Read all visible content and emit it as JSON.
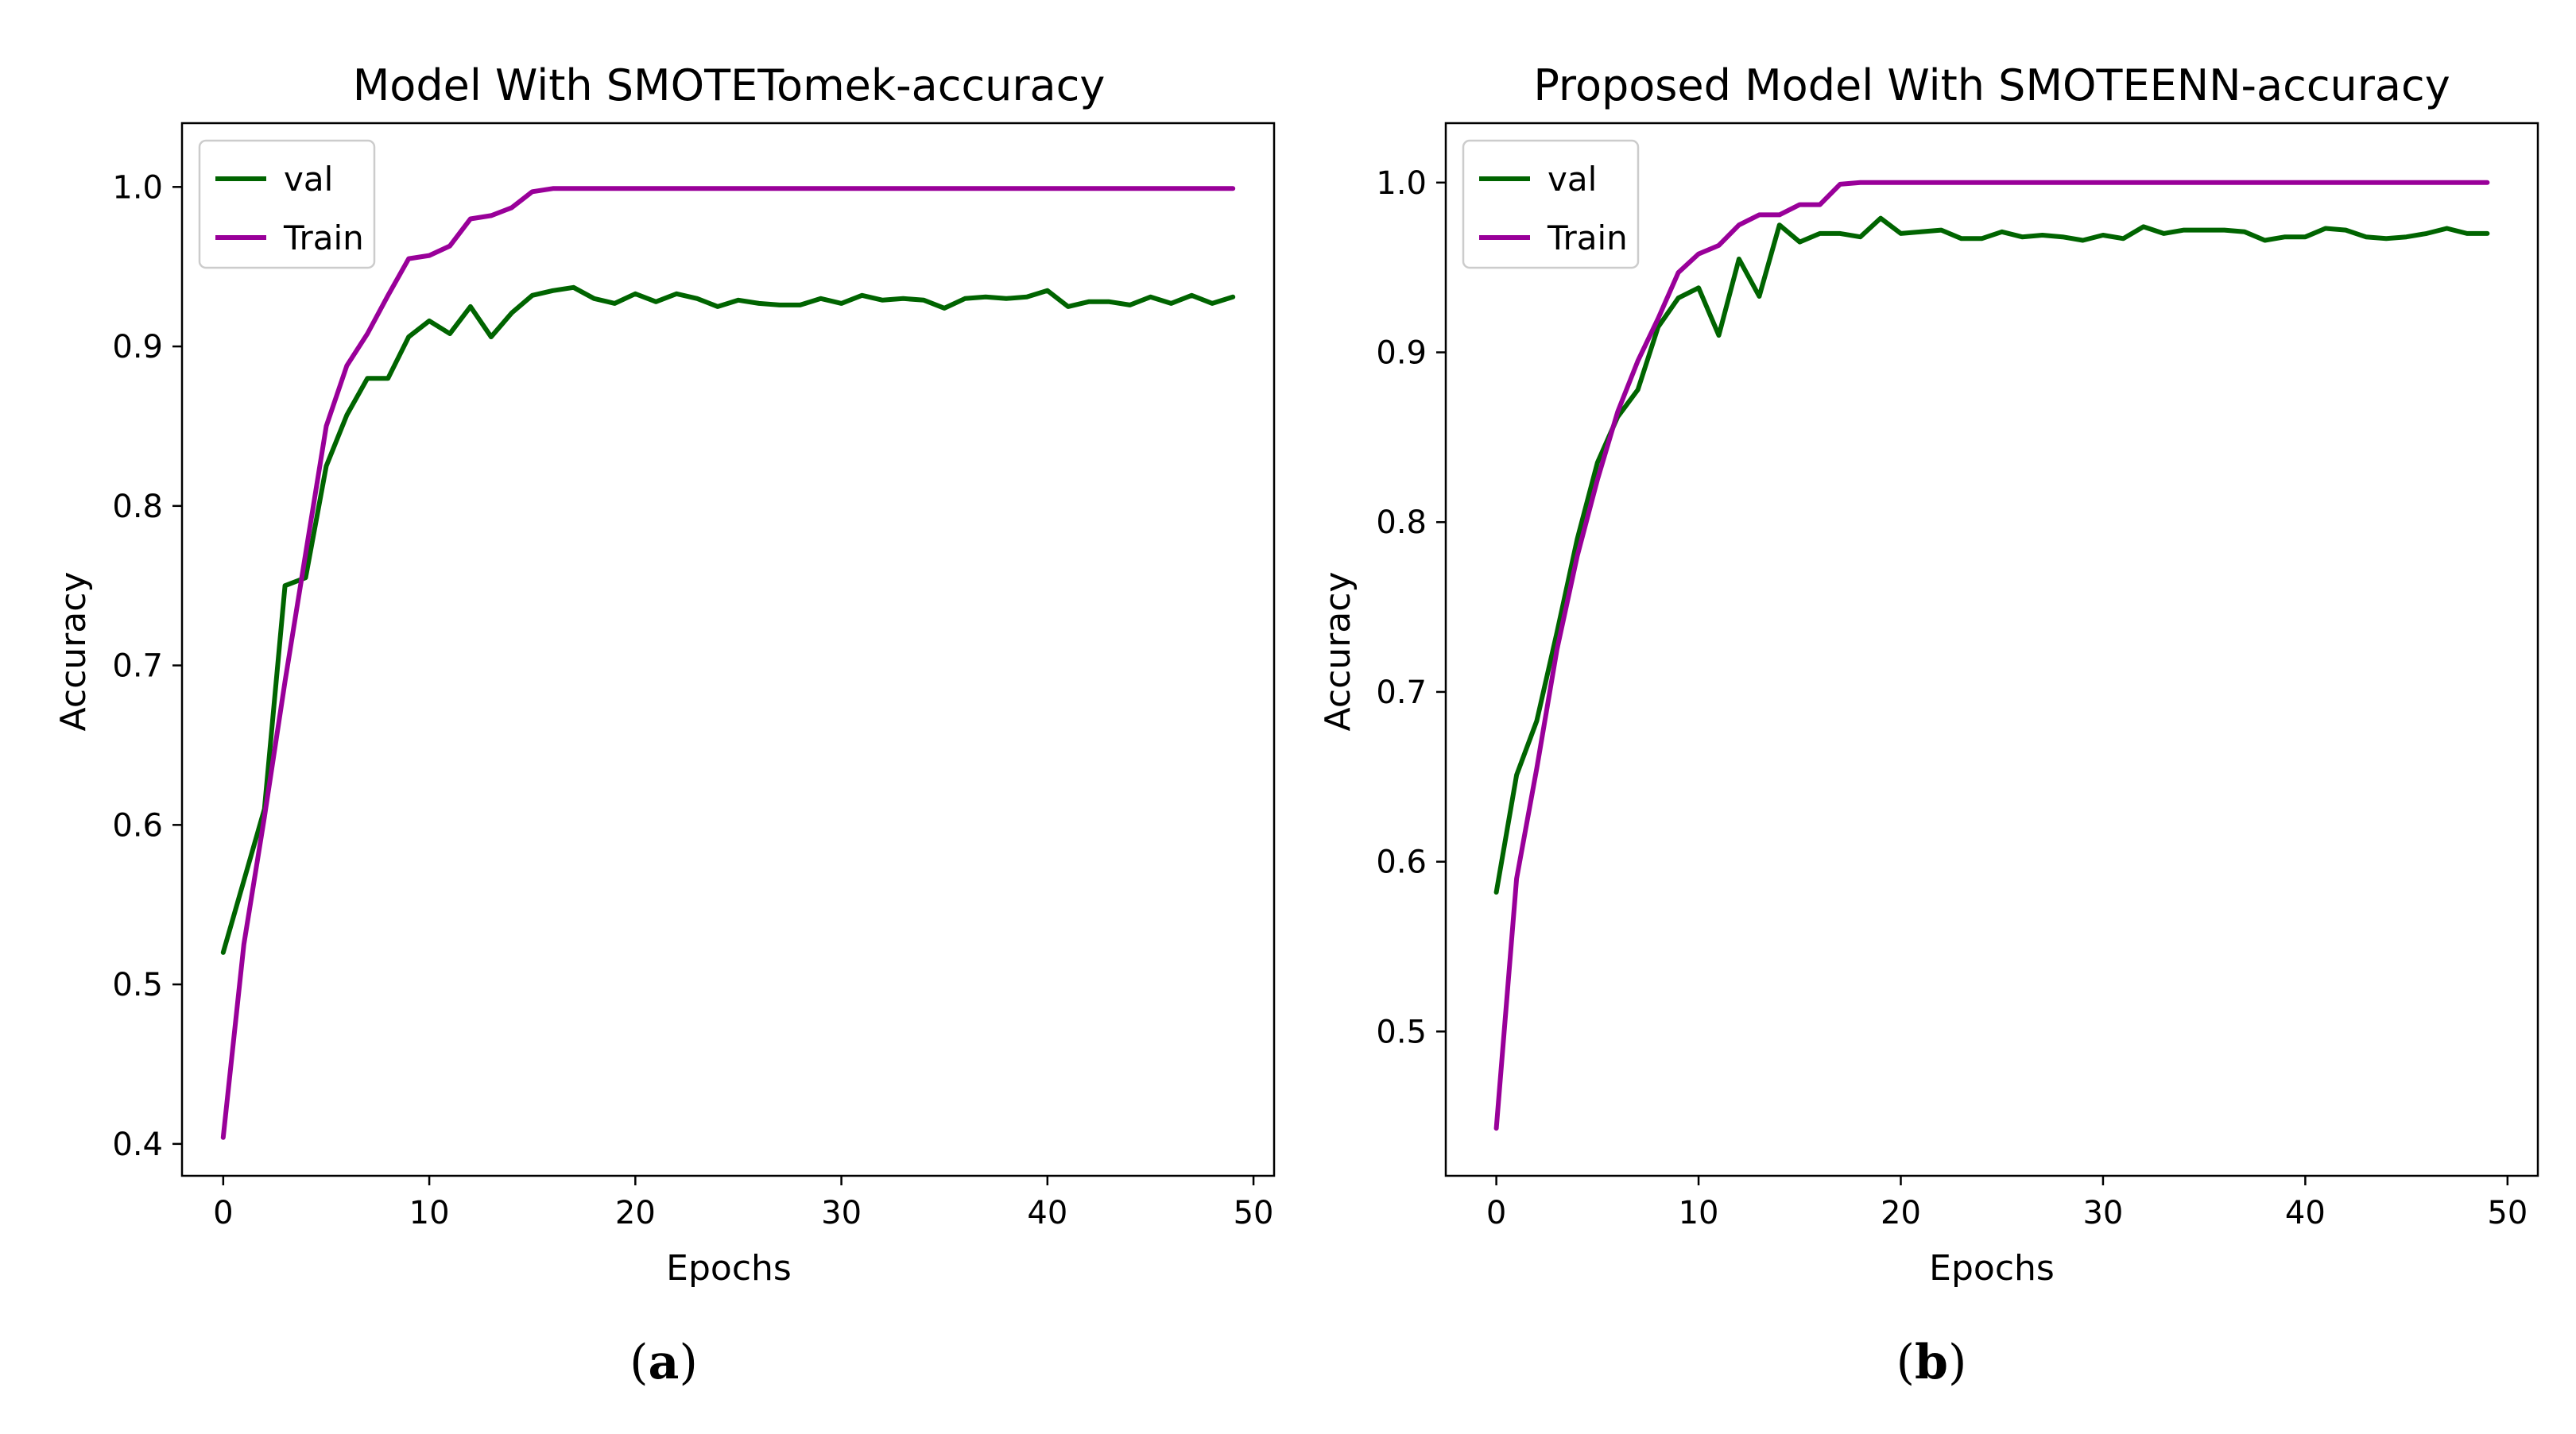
{
  "chart_data": [
    {
      "type": "line",
      "title": "Model With SMOTETomek-accuracy",
      "xlabel": "Epochs",
      "ylabel": "Accuracy",
      "xlim": [
        -2,
        51
      ],
      "ylim": [
        0.38,
        1.04
      ],
      "xticks": [
        0,
        10,
        20,
        30,
        40,
        50
      ],
      "xtick_labels": [
        "0",
        "10",
        "20",
        "30",
        "40",
        "50"
      ],
      "yticks": [
        0.4,
        0.5,
        0.6,
        0.7,
        0.8,
        0.9,
        1.0
      ],
      "ytick_labels": [
        "0.4",
        "0.5",
        "0.6",
        "0.7",
        "0.8",
        "0.9",
        "1.0"
      ],
      "legend_position": "top-left",
      "caption_open": "(",
      "caption_letter": "a",
      "caption_close": ")",
      "series": [
        {
          "name": "val",
          "color": "#006400",
          "x": [
            0,
            1,
            2,
            3,
            4,
            5,
            6,
            7,
            8,
            9,
            10,
            11,
            12,
            13,
            14,
            15,
            16,
            17,
            18,
            19,
            20,
            21,
            22,
            23,
            24,
            25,
            26,
            27,
            28,
            29,
            30,
            31,
            32,
            33,
            34,
            35,
            36,
            37,
            38,
            39,
            40,
            41,
            42,
            43,
            44,
            45,
            46,
            47,
            48,
            49
          ],
          "values": [
            0.52,
            0.565,
            0.61,
            0.75,
            0.755,
            0.825,
            0.857,
            0.88,
            0.88,
            0.906,
            0.916,
            0.908,
            0.925,
            0.906,
            0.921,
            0.932,
            0.935,
            0.937,
            0.93,
            0.927,
            0.933,
            0.928,
            0.933,
            0.93,
            0.925,
            0.929,
            0.927,
            0.926,
            0.926,
            0.93,
            0.927,
            0.932,
            0.929,
            0.93,
            0.929,
            0.924,
            0.93,
            0.931,
            0.93,
            0.931,
            0.935,
            0.925,
            0.928,
            0.928,
            0.926,
            0.931,
            0.927,
            0.932,
            0.927,
            0.931
          ]
        },
        {
          "name": "Train",
          "color": "#990099",
          "x": [
            0,
            1,
            2,
            3,
            4,
            5,
            6,
            7,
            8,
            9,
            10,
            11,
            12,
            13,
            14,
            15,
            16,
            17,
            18,
            19,
            20,
            21,
            22,
            23,
            24,
            25,
            26,
            27,
            28,
            29,
            30,
            31,
            32,
            33,
            34,
            35,
            36,
            37,
            38,
            39,
            40,
            41,
            42,
            43,
            44,
            45,
            46,
            47,
            48,
            49
          ],
          "values": [
            0.404,
            0.525,
            0.605,
            0.69,
            0.77,
            0.85,
            0.888,
            0.908,
            0.932,
            0.955,
            0.957,
            0.963,
            0.98,
            0.982,
            0.987,
            0.997,
            0.999,
            0.999,
            0.999,
            0.999,
            0.999,
            0.999,
            0.999,
            0.999,
            0.999,
            0.999,
            0.999,
            0.999,
            0.999,
            0.999,
            0.999,
            0.999,
            0.999,
            0.999,
            0.999,
            0.999,
            0.999,
            0.999,
            0.999,
            0.999,
            0.999,
            0.999,
            0.999,
            0.999,
            0.999,
            0.999,
            0.999,
            0.999,
            0.999,
            0.999
          ]
        }
      ]
    },
    {
      "type": "line",
      "title": "Proposed Model With SMOTEENN-accuracy",
      "xlabel": "Epochs",
      "ylabel": "Accuracy",
      "xlim": [
        -2.5,
        51.5
      ],
      "ylim": [
        0.415,
        1.035
      ],
      "xticks": [
        0,
        10,
        20,
        30,
        40,
        50
      ],
      "xtick_labels": [
        "0",
        "10",
        "20",
        "30",
        "40",
        "50"
      ],
      "yticks": [
        0.5,
        0.6,
        0.7,
        0.8,
        0.9,
        1.0
      ],
      "ytick_labels": [
        "0.5",
        "0.6",
        "0.7",
        "0.8",
        "0.9",
        "1.0"
      ],
      "legend_position": "top-left",
      "caption_open": "(",
      "caption_letter": "b",
      "caption_close": ")",
      "series": [
        {
          "name": "val",
          "color": "#006400",
          "x": [
            0,
            1,
            2,
            3,
            4,
            5,
            6,
            7,
            8,
            9,
            10,
            11,
            12,
            13,
            14,
            15,
            16,
            17,
            18,
            19,
            20,
            21,
            22,
            23,
            24,
            25,
            26,
            27,
            28,
            29,
            30,
            31,
            32,
            33,
            34,
            35,
            36,
            37,
            38,
            39,
            40,
            41,
            42,
            43,
            44,
            45,
            46,
            47,
            48,
            49
          ],
          "values": [
            0.582,
            0.651,
            0.683,
            0.735,
            0.79,
            0.835,
            0.862,
            0.878,
            0.915,
            0.932,
            0.938,
            0.91,
            0.955,
            0.933,
            0.975,
            0.965,
            0.97,
            0.97,
            0.968,
            0.979,
            0.97,
            0.971,
            0.972,
            0.967,
            0.967,
            0.971,
            0.968,
            0.969,
            0.968,
            0.966,
            0.969,
            0.967,
            0.974,
            0.97,
            0.972,
            0.972,
            0.972,
            0.971,
            0.966,
            0.968,
            0.968,
            0.973,
            0.972,
            0.968,
            0.967,
            0.968,
            0.97,
            0.973,
            0.97,
            0.97
          ]
        },
        {
          "name": "Train",
          "color": "#990099",
          "x": [
            0,
            1,
            2,
            3,
            4,
            5,
            6,
            7,
            8,
            9,
            10,
            11,
            12,
            13,
            14,
            15,
            16,
            17,
            18,
            19,
            20,
            21,
            22,
            23,
            24,
            25,
            26,
            27,
            28,
            29,
            30,
            31,
            32,
            33,
            34,
            35,
            36,
            37,
            38,
            39,
            40,
            41,
            42,
            43,
            44,
            45,
            46,
            47,
            48,
            49
          ],
          "values": [
            0.443,
            0.59,
            0.655,
            0.725,
            0.78,
            0.825,
            0.865,
            0.895,
            0.92,
            0.947,
            0.958,
            0.963,
            0.975,
            0.981,
            0.981,
            0.987,
            0.987,
            0.999,
            1.0,
            1.0,
            1.0,
            1.0,
            1.0,
            1.0,
            1.0,
            1.0,
            1.0,
            1.0,
            1.0,
            1.0,
            1.0,
            1.0,
            1.0,
            1.0,
            1.0,
            1.0,
            1.0,
            1.0,
            1.0,
            1.0,
            1.0,
            1.0,
            1.0,
            1.0,
            1.0,
            1.0,
            1.0,
            1.0,
            1.0,
            1.0
          ]
        }
      ]
    }
  ]
}
